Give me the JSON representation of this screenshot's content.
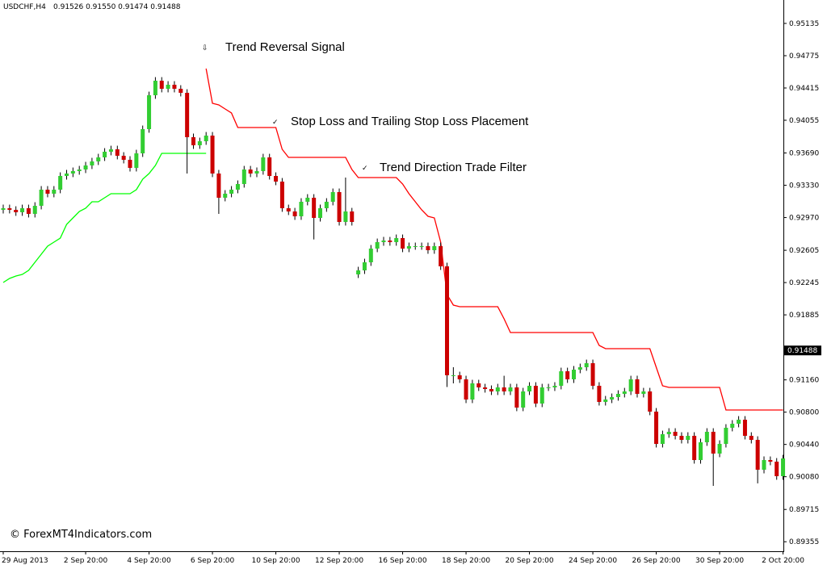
{
  "header": {
    "symbol": "USDCHF,H4",
    "quote": "0.91526 0.91550 0.91474 0.91488"
  },
  "footer": "© ForexMT4Indicators.com",
  "chart_data": {
    "type": "candlestick",
    "annotations": [
      "Trend Reversal Signal",
      "Stop Loss and Trailing Stop Loss Placement",
      "Trend Direction Trade Filter"
    ],
    "bull_color": "#32cd32",
    "bear_color": "#cc0000",
    "ylim": [
      0.89249,
      0.95396
    ],
    "yticks": [
      0.95135,
      0.94775,
      0.94415,
      0.94055,
      {
        "value": 0.9369,
        "label": "0.93690"
      },
      {
        "value": 0.9333,
        "label": "0.93330"
      },
      {
        "value": 0.9297,
        "label": "0.92970"
      },
      0.92605,
      0.92245,
      0.91885,
      {
        "value": 0.9116,
        "label": "0.91160"
      },
      {
        "value": 0.908,
        "label": "0.90800"
      },
      {
        "value": 0.9044,
        "label": "0.90440"
      },
      {
        "value": 0.9008,
        "label": "0.90080"
      },
      0.89715,
      0.89355
    ],
    "last_price": 0.91488,
    "categories": [
      "29 Aug 2013",
      null,
      null,
      null,
      null,
      null,
      null,
      null,
      null,
      null,
      null,
      null,
      null,
      "2 Sep 20:00",
      null,
      null,
      null,
      null,
      null,
      null,
      null,
      null,
      null,
      "4 Sep 20:00",
      null,
      null,
      null,
      null,
      null,
      null,
      null,
      null,
      null,
      "6 Sep 20:00",
      null,
      null,
      null,
      null,
      null,
      null,
      null,
      null,
      null,
      "10 Sep 20:00",
      null,
      null,
      null,
      null,
      null,
      null,
      null,
      null,
      null,
      "12 Sep 20:00",
      null,
      null,
      null,
      null,
      null,
      null,
      null,
      null,
      null,
      "16 Sep 20:00",
      null,
      null,
      null,
      null,
      null,
      null,
      null,
      null,
      null,
      "18 Sep 20:00",
      null,
      null,
      null,
      null,
      null,
      null,
      null,
      null,
      null,
      "20 Sep 20:00",
      null,
      null,
      null,
      null,
      null,
      null,
      null,
      null,
      null,
      "24 Sep 20:00",
      null,
      null,
      null,
      null,
      null,
      null,
      null,
      null,
      null,
      "26 Sep 20:00",
      null,
      null,
      null,
      null,
      null,
      null,
      null,
      null,
      null,
      "30 Sep 20:00",
      null,
      null,
      null,
      null,
      null,
      null,
      null,
      null,
      null,
      "2 Oct 20:00"
    ],
    "open": [
      0.93056,
      0.93074,
      0.93056,
      0.93029,
      0.93074,
      0.93011,
      0.93101,
      0.93281,
      0.93236,
      0.93281,
      0.93434,
      0.93461,
      0.93488,
      0.93506,
      0.93551,
      0.93596,
      0.93641,
      0.93704,
      0.93731,
      0.93659,
      0.93614,
      0.93524,
      0.93686,
      0.93956,
      0.94334,
      0.94496,
      0.94406,
      0.94451,
      0.94406,
      0.94361,
      0.93866,
      0.93776,
      0.93821,
      0.93884,
      0.93461,
      0.93191,
      0.93236,
      0.93281,
      0.93344,
      0.93506,
      0.93461,
      0.93488,
      0.93641,
      0.93434,
      0.93371,
      0.93074,
      0.93038,
      0.92984,
      0.93146,
      0.93191,
      0.92966,
      0.93074,
      0.93146,
      0.93254,
      0.92921,
      0.93038,
      0.92336,
      0.92381,
      0.92471,
      0.92624,
      0.92696,
      0.92714,
      0.92696,
      0.92741,
      0.92624,
      0.92651,
      0.92651,
      0.92651,
      0.92606,
      0.92651,
      0.92426,
      0.91211,
      0.91211,
      0.91166,
      0.90941,
      0.91121,
      0.91076,
      0.91058,
      0.91031,
      0.91076,
      0.91031,
      0.91076,
      0.90851,
      0.91031,
      0.91094,
      0.90896,
      0.91076,
      0.91076,
      0.91094,
      0.91256,
      0.91166,
      0.91274,
      0.91301,
      0.91346,
      0.91094,
      0.90914,
      0.90941,
      0.90968,
      0.91004,
      0.91031,
      0.91166,
      0.91004,
      0.91031,
      0.90806,
      0.90446,
      0.90554,
      0.90581,
      0.90536,
      0.90491,
      0.90536,
      0.90266,
      0.90464,
      0.90581,
      0.90338,
      0.90446,
      0.90626,
      0.90671,
      0.90716,
      0.90536,
      0.90491,
      0.90158,
      0.90266,
      0.90248,
      0.90086
    ],
    "high": [
      0.93114,
      0.93114,
      0.93096,
      0.93114,
      0.93114,
      0.93141,
      0.93321,
      0.93321,
      0.93321,
      0.93474,
      0.93501,
      0.93528,
      0.93546,
      0.93591,
      0.93636,
      0.93681,
      0.93744,
      0.93771,
      0.93771,
      0.93699,
      0.93654,
      0.93726,
      0.93996,
      0.94374,
      0.94536,
      0.94536,
      0.94491,
      0.94491,
      0.94446,
      0.94401,
      0.93906,
      0.93861,
      0.93924,
      0.93924,
      0.93501,
      0.93276,
      0.93321,
      0.93384,
      0.93546,
      0.93546,
      0.93528,
      0.93681,
      0.93681,
      0.93474,
      0.93411,
      0.93114,
      0.93078,
      0.93186,
      0.93231,
      0.93231,
      0.93114,
      0.93186,
      0.93294,
      0.93294,
      0.93416,
      0.93078,
      0.92421,
      0.92511,
      0.92664,
      0.92736,
      0.92754,
      0.92754,
      0.92781,
      0.92781,
      0.92691,
      0.92691,
      0.92691,
      0.92691,
      0.92691,
      0.92691,
      0.92466,
      0.91301,
      0.91251,
      0.91206,
      0.91161,
      0.91161,
      0.91116,
      0.91098,
      0.91116,
      0.91206,
      0.91116,
      0.91116,
      0.91071,
      0.91134,
      0.91134,
      0.91116,
      0.91116,
      0.91134,
      0.91296,
      0.91296,
      0.91314,
      0.91341,
      0.91386,
      0.91386,
      0.91134,
      0.90981,
      0.91008,
      0.91044,
      0.91071,
      0.91206,
      0.91206,
      0.91071,
      0.91071,
      0.90846,
      0.90594,
      0.90621,
      0.90621,
      0.90576,
      0.90576,
      0.90576,
      0.90504,
      0.90621,
      0.90621,
      0.90486,
      0.90666,
      0.90711,
      0.90756,
      0.90756,
      0.90576,
      0.90531,
      0.90306,
      0.90306,
      0.90288,
      0.90324
    ],
    "low": [
      0.93016,
      0.93016,
      0.92989,
      0.92989,
      0.92971,
      0.92971,
      0.93061,
      0.93196,
      0.93196,
      0.93241,
      0.93394,
      0.93421,
      0.93448,
      0.93466,
      0.93511,
      0.93556,
      0.93601,
      0.93664,
      0.93619,
      0.93574,
      0.93484,
      0.93484,
      0.93646,
      0.93916,
      0.94294,
      0.94366,
      0.94366,
      0.94366,
      0.94321,
      0.93461,
      0.93736,
      0.93736,
      0.93781,
      0.93421,
      0.93011,
      0.93151,
      0.93196,
      0.93241,
      0.93304,
      0.93421,
      0.93421,
      0.93448,
      0.93394,
      0.93331,
      0.93034,
      0.92998,
      0.92944,
      0.92944,
      0.93106,
      0.92726,
      0.92926,
      0.93034,
      0.93106,
      0.92881,
      0.92881,
      0.92881,
      0.92296,
      0.92341,
      0.92431,
      0.92584,
      0.92656,
      0.92656,
      0.92656,
      0.92584,
      0.92584,
      0.92611,
      0.92611,
      0.92566,
      0.92566,
      0.92386,
      0.91081,
      0.91121,
      0.91126,
      0.90901,
      0.90901,
      0.91036,
      0.91018,
      0.90991,
      0.90991,
      0.90991,
      0.90991,
      0.90811,
      0.90811,
      0.90991,
      0.90856,
      0.90856,
      0.91036,
      0.91036,
      0.91054,
      0.91126,
      0.91126,
      0.91234,
      0.91261,
      0.91054,
      0.90874,
      0.90874,
      0.90901,
      0.90928,
      0.90964,
      0.90991,
      0.90964,
      0.90964,
      0.90766,
      0.90406,
      0.90406,
      0.90514,
      0.90496,
      0.90451,
      0.90451,
      0.90226,
      0.90226,
      0.90424,
      0.89978,
      0.90298,
      0.90406,
      0.90586,
      0.90631,
      0.90496,
      0.90451,
      0.90006,
      0.90118,
      0.90208,
      0.90046,
      0.90046
    ],
    "close": [
      0.93074,
      0.93056,
      0.93029,
      0.93074,
      0.93011,
      0.93101,
      0.93281,
      0.93236,
      0.93281,
      0.93434,
      0.93461,
      0.93488,
      0.93506,
      0.93551,
      0.93596,
      0.93641,
      0.93704,
      0.93731,
      0.93659,
      0.93614,
      0.93524,
      0.93686,
      0.93956,
      0.94334,
      0.94496,
      0.94406,
      0.94451,
      0.94406,
      0.94361,
      0.93866,
      0.93776,
      0.93821,
      0.93884,
      0.93461,
      0.93191,
      0.93236,
      0.93281,
      0.93344,
      0.93506,
      0.93461,
      0.93488,
      0.93641,
      0.93434,
      0.93371,
      0.93074,
      0.93038,
      0.92984,
      0.93146,
      0.93191,
      0.92966,
      0.93074,
      0.93146,
      0.93254,
      0.92921,
      0.93038,
      0.92921,
      0.92381,
      0.92471,
      0.92624,
      0.92696,
      0.92714,
      0.92696,
      0.92741,
      0.92624,
      0.92651,
      0.92651,
      0.92651,
      0.92606,
      0.92651,
      0.92426,
      0.91211,
      0.91211,
      0.91166,
      0.90941,
      0.91121,
      0.91076,
      0.91058,
      0.91031,
      0.91076,
      0.91031,
      0.91076,
      0.90851,
      0.91031,
      0.91094,
      0.90896,
      0.91076,
      0.91076,
      0.91094,
      0.91256,
      0.91166,
      0.91274,
      0.91301,
      0.91346,
      0.91094,
      0.90914,
      0.90941,
      0.90968,
      0.91004,
      0.91031,
      0.91166,
      0.91004,
      0.91031,
      0.90806,
      0.90446,
      0.90554,
      0.90581,
      0.90536,
      0.90491,
      0.90536,
      0.90266,
      0.90464,
      0.90581,
      0.90338,
      0.90446,
      0.90626,
      0.90671,
      0.90716,
      0.90536,
      0.90491,
      0.90158,
      0.90266,
      0.90248,
      0.90086,
      0.90284
    ],
    "lines": [
      {
        "color": "#00ff00",
        "values": [
          0.92246,
          0.92291,
          0.92318,
          0.92336,
          0.92381,
          0.92471,
          0.92561,
          0.92651,
          0.92696,
          0.92741,
          0.92894,
          0.92966,
          0.93038,
          0.93074,
          0.93146,
          0.93146,
          0.93191,
          0.93236,
          0.93236,
          0.93236,
          0.93236,
          0.93281,
          0.93398,
          0.93461,
          0.93551,
          0.93686,
          0.93686,
          0.93686,
          0.93686,
          0.93686,
          0.93686,
          0.93686,
          0.93686,
          null,
          null,
          null,
          null,
          null,
          null,
          null,
          null,
          null,
          null,
          null,
          null,
          null,
          null,
          null,
          null,
          null,
          null,
          null,
          null,
          null,
          null,
          null,
          null,
          null,
          null,
          null,
          null,
          null,
          null,
          null,
          null,
          null,
          null,
          null,
          null,
          null,
          null,
          null,
          null,
          null,
          null,
          null,
          null,
          null,
          null,
          null,
          null,
          null,
          null,
          null,
          null,
          null,
          null,
          null,
          null,
          null,
          null,
          null,
          null,
          null,
          null,
          null,
          null,
          null,
          null,
          null,
          null,
          null,
          null,
          null,
          null,
          null,
          null,
          null,
          null,
          null,
          null,
          null,
          null,
          null,
          null,
          null,
          null,
          null,
          null,
          null,
          null,
          null,
          null,
          null
        ]
      },
      {
        "color": "#ff0000",
        "values": [
          null,
          null,
          null,
          null,
          null,
          null,
          null,
          null,
          null,
          null,
          null,
          null,
          null,
          null,
          null,
          null,
          null,
          null,
          null,
          null,
          null,
          null,
          null,
          null,
          null,
          null,
          null,
          null,
          null,
          null,
          null,
          null,
          0.94631,
          0.94244,
          0.94226,
          0.94181,
          0.94136,
          0.93974,
          0.93974,
          0.93974,
          0.93974,
          0.93974,
          0.93974,
          0.93974,
          0.93731,
          0.93641,
          0.93641,
          0.93641,
          0.93641,
          0.93641,
          0.93641,
          0.93641,
          0.93641,
          0.93641,
          0.93641,
          0.93506,
          0.93416,
          0.93416,
          0.93416,
          0.93416,
          0.93416,
          0.93416,
          0.93416,
          0.93344,
          0.93236,
          0.93146,
          0.93056,
          0.92984,
          0.92966,
          0.92696,
          0.92111,
          0.91994,
          0.91976,
          0.91976,
          0.91976,
          0.91976,
          0.91976,
          0.91976,
          0.91976,
          0.91841,
          0.91688,
          0.91688,
          0.91688,
          0.91688,
          0.91688,
          0.91688,
          0.91688,
          0.91688,
          0.91688,
          0.91688,
          0.91688,
          0.91688,
          0.91688,
          0.91688,
          0.91544,
          0.91508,
          0.91508,
          0.91508,
          0.91508,
          0.91508,
          0.91508,
          0.91508,
          0.91508,
          0.91301,
          0.91094,
          0.91076,
          0.91076,
          0.91076,
          0.91076,
          0.91076,
          0.91076,
          0.91076,
          0.91076,
          0.91076,
          0.90824,
          0.90824,
          0.90824,
          0.90824,
          0.90824,
          0.90824,
          0.90824,
          0.90824,
          0.90824,
          0.90824
        ]
      }
    ]
  }
}
